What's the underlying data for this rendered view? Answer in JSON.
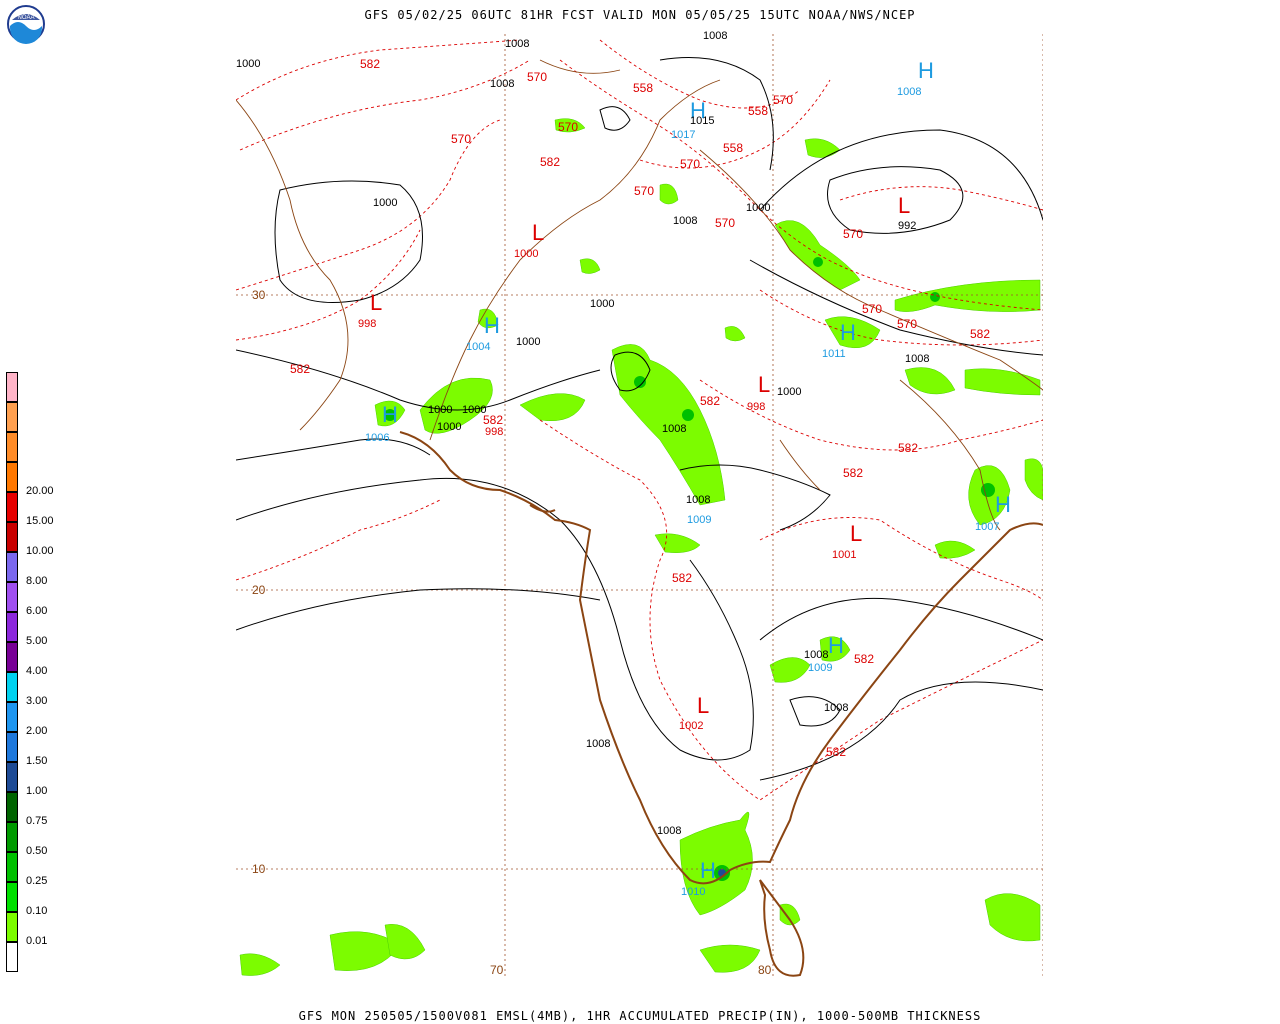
{
  "header": {
    "title": "GFS 05/02/25 06UTC 81HR FCST VALID MON 05/05/25 15UTC NOAA/NWS/NCEP",
    "logo_text": "NOAA"
  },
  "footer": {
    "caption": "GFS MON 250505/1500V081 EMSL(4MB), 1HR ACCUMULATED PRECIP(IN), 1000-500MB THICKNESS"
  },
  "legend": {
    "colors": [
      "#ffffff",
      "#7cfc00",
      "#00e000",
      "#00c000",
      "#009a00",
      "#006400",
      "#1e4b96",
      "#1e78dc",
      "#1e96f0",
      "#00d2f0",
      "#780096",
      "#8c28dc",
      "#a050f0",
      "#7b68ee",
      "#c80000",
      "#e60000",
      "#ff7800",
      "#ff8c28",
      "#ffa050",
      "#ffb4c8"
    ],
    "labels": [
      "0.01",
      "0.10",
      "0.25",
      "0.50",
      "0.75",
      "1.00",
      "1.50",
      "2.00",
      "3.00",
      "4.00",
      "5.00",
      "6.00",
      "8.00",
      "10.00",
      "15.00",
      "20.00"
    ]
  },
  "grid": {
    "lat_labels": [
      "30",
      "20",
      "10"
    ],
    "lon_labels": [
      "70",
      "80"
    ]
  },
  "pressure_centers": [
    {
      "symbol": "H",
      "value": "1008",
      "color": "#1e9be0"
    },
    {
      "symbol": "H",
      "value": "1017",
      "color": "#1e9be0"
    },
    {
      "symbol": "H",
      "value": "1004",
      "color": "#1e9be0"
    },
    {
      "symbol": "H",
      "value": "1006",
      "color": "#1e9be0"
    },
    {
      "symbol": "H",
      "value": "1011",
      "color": "#1e9be0"
    },
    {
      "symbol": "H",
      "value": "1009",
      "color": "#1e9be0"
    },
    {
      "symbol": "H",
      "value": "1007",
      "color": "#1e9be0"
    },
    {
      "symbol": "H",
      "value": "1009",
      "color": "#1e9be0"
    },
    {
      "symbol": "H",
      "value": "1010",
      "color": "#1e9be0"
    },
    {
      "symbol": "L",
      "value": "1000",
      "color": "#dc0000"
    },
    {
      "symbol": "L",
      "value": "998",
      "color": "#dc0000"
    },
    {
      "symbol": "L",
      "value": "992",
      "color": "#dc0000"
    },
    {
      "symbol": "L",
      "value": "998",
      "color": "#dc0000"
    },
    {
      "symbol": "L",
      "value": "1001",
      "color": "#dc0000"
    },
    {
      "symbol": "L",
      "value": "1002",
      "color": "#dc0000"
    },
    {
      "symbol": "L",
      "value": "998",
      "color": "#dc0000"
    }
  ],
  "isobar_labels": [
    "1008",
    "1008",
    "1015",
    "1000",
    "1008",
    "1000",
    "1000",
    "1000",
    "1000",
    "1000",
    "1000",
    "1008",
    "1008",
    "1008",
    "1008",
    "1008",
    "1008",
    "1008",
    "1000",
    "1008",
    "1000"
  ],
  "thickness_labels": [
    "582",
    "570",
    "570",
    "558",
    "558",
    "570",
    "558",
    "570",
    "582",
    "570",
    "570",
    "570",
    "570",
    "570",
    "570",
    "582",
    "582",
    "582",
    "582",
    "582",
    "582",
    "582",
    "582",
    "582"
  ]
}
